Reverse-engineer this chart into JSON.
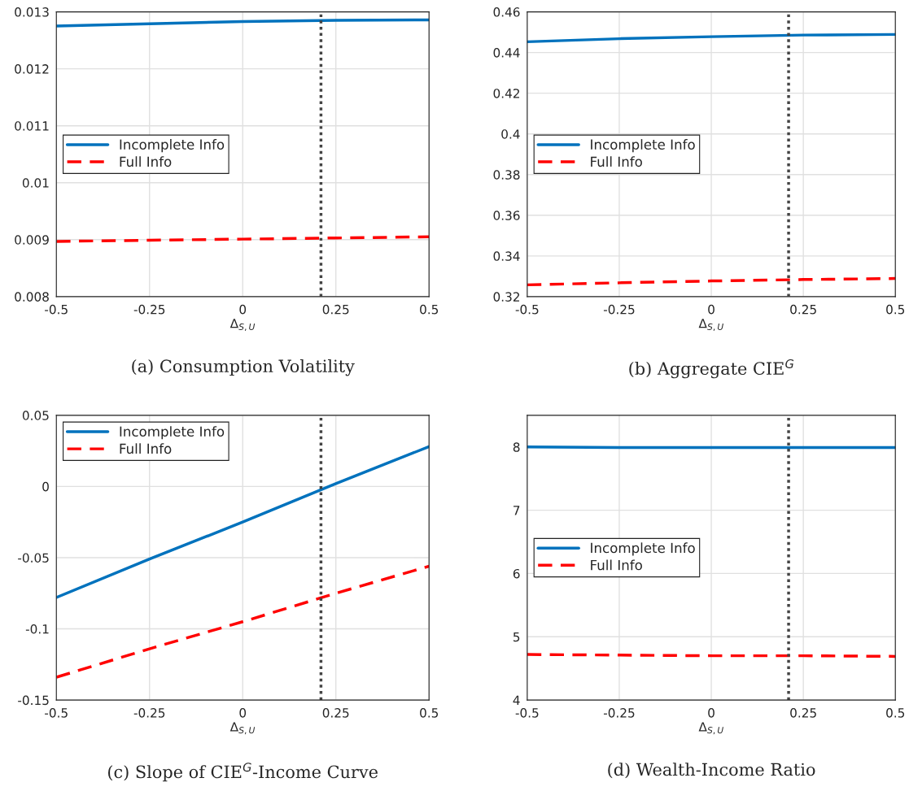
{
  "chart_data": [
    {
      "type": "line",
      "title": "(a) Consumption Volatility",
      "xlabel": "Δ$_{S,U}$",
      "x": [
        -0.5,
        -0.25,
        0,
        0.25,
        0.5
      ],
      "xlim": [
        -0.5,
        0.5
      ],
      "xticks": [
        -0.5,
        -0.25,
        0,
        0.25,
        0.5
      ],
      "ylim": [
        0.008,
        0.013
      ],
      "yticks": [
        0.008,
        0.009,
        0.01,
        0.011,
        0.012,
        0.013
      ],
      "grid": true,
      "legend": "left",
      "marker": "none",
      "series": [
        {
          "name": "Incomplete Info",
          "color": "#0072bd",
          "line_style": "solid",
          "values": [
            0.01275,
            0.01279,
            0.01283,
            0.01285,
            0.01286
          ]
        },
        {
          "name": "Full Info",
          "color": "#ff0000",
          "line_style": "dashed",
          "values": [
            0.00897,
            0.00899,
            0.00901,
            0.00903,
            0.00905
          ]
        }
      ],
      "ref_lines": [
        {
          "axis": "x",
          "value": 0.21,
          "label": null,
          "color": "#444444",
          "line_style": "dotted"
        }
      ]
    },
    {
      "type": "line",
      "title": "(b) Aggregate CIE$^{G}$",
      "xlabel": "Δ$_{S,U}$",
      "x": [
        -0.5,
        -0.25,
        0,
        0.25,
        0.5
      ],
      "xlim": [
        -0.5,
        0.5
      ],
      "xticks": [
        -0.5,
        -0.25,
        0,
        0.25,
        0.5
      ],
      "ylim": [
        0.32,
        0.46
      ],
      "yticks": [
        0.32,
        0.34,
        0.36,
        0.38,
        0.4,
        0.42,
        0.44,
        0.46
      ],
      "grid": true,
      "legend": "left",
      "marker": "none",
      "series": [
        {
          "name": "Incomplete Info",
          "color": "#0072bd",
          "line_style": "solid",
          "values": [
            0.4453,
            0.4468,
            0.4478,
            0.4486,
            0.4489
          ]
        },
        {
          "name": "Full Info",
          "color": "#ff0000",
          "line_style": "dashed",
          "values": [
            0.3258,
            0.3268,
            0.3277,
            0.3284,
            0.3289
          ]
        }
      ],
      "ref_lines": [
        {
          "axis": "x",
          "value": 0.21,
          "label": null,
          "color": "#444444",
          "line_style": "dotted"
        }
      ]
    },
    {
      "type": "line",
      "title": "(c) Slope of CIE$^{G}$-Income Curve",
      "xlabel": "Δ$_{S,U}$",
      "x": [
        -0.5,
        -0.25,
        0,
        0.25,
        0.5
      ],
      "xlim": [
        -0.5,
        0.5
      ],
      "xticks": [
        -0.5,
        -0.25,
        0,
        0.25,
        0.5
      ],
      "ylim": [
        -0.15,
        0.05
      ],
      "yticks": [
        -0.15,
        -0.1,
        -0.05,
        0,
        0.05
      ],
      "grid": true,
      "legend": "upper left",
      "marker": "none",
      "series": [
        {
          "name": "Incomplete Info",
          "color": "#0072bd",
          "line_style": "solid",
          "values": [
            -0.078,
            -0.051,
            -0.025,
            0.002,
            0.028
          ]
        },
        {
          "name": "Full Info",
          "color": "#ff0000",
          "line_style": "dashed",
          "values": [
            -0.134,
            -0.114,
            -0.095,
            -0.075,
            -0.056
          ]
        }
      ],
      "ref_lines": [
        {
          "axis": "x",
          "value": 0.21,
          "label": null,
          "color": "#444444",
          "line_style": "dotted"
        }
      ]
    },
    {
      "type": "line",
      "title": "(d) Wealth-Income Ratio",
      "xlabel": "Δ$_{S,U}$",
      "x": [
        -0.5,
        -0.25,
        0,
        0.25,
        0.5
      ],
      "xlim": [
        -0.5,
        0.5
      ],
      "xticks": [
        -0.5,
        -0.25,
        0,
        0.25,
        0.5
      ],
      "ylim": [
        4,
        8.5
      ],
      "yticks": [
        4,
        5,
        6,
        7,
        8
      ],
      "grid": true,
      "legend": "left",
      "marker": "none",
      "series": [
        {
          "name": "Incomplete Info",
          "color": "#0072bd",
          "line_style": "solid",
          "values": [
            8.0,
            7.99,
            7.99,
            7.99,
            7.99
          ]
        },
        {
          "name": "Full Info",
          "color": "#ff0000",
          "line_style": "dashed",
          "values": [
            4.72,
            4.71,
            4.7,
            4.7,
            4.69
          ]
        }
      ],
      "ref_lines": [
        {
          "axis": "x",
          "value": 0.21,
          "label": null,
          "color": "#444444",
          "line_style": "dotted"
        }
      ]
    }
  ]
}
